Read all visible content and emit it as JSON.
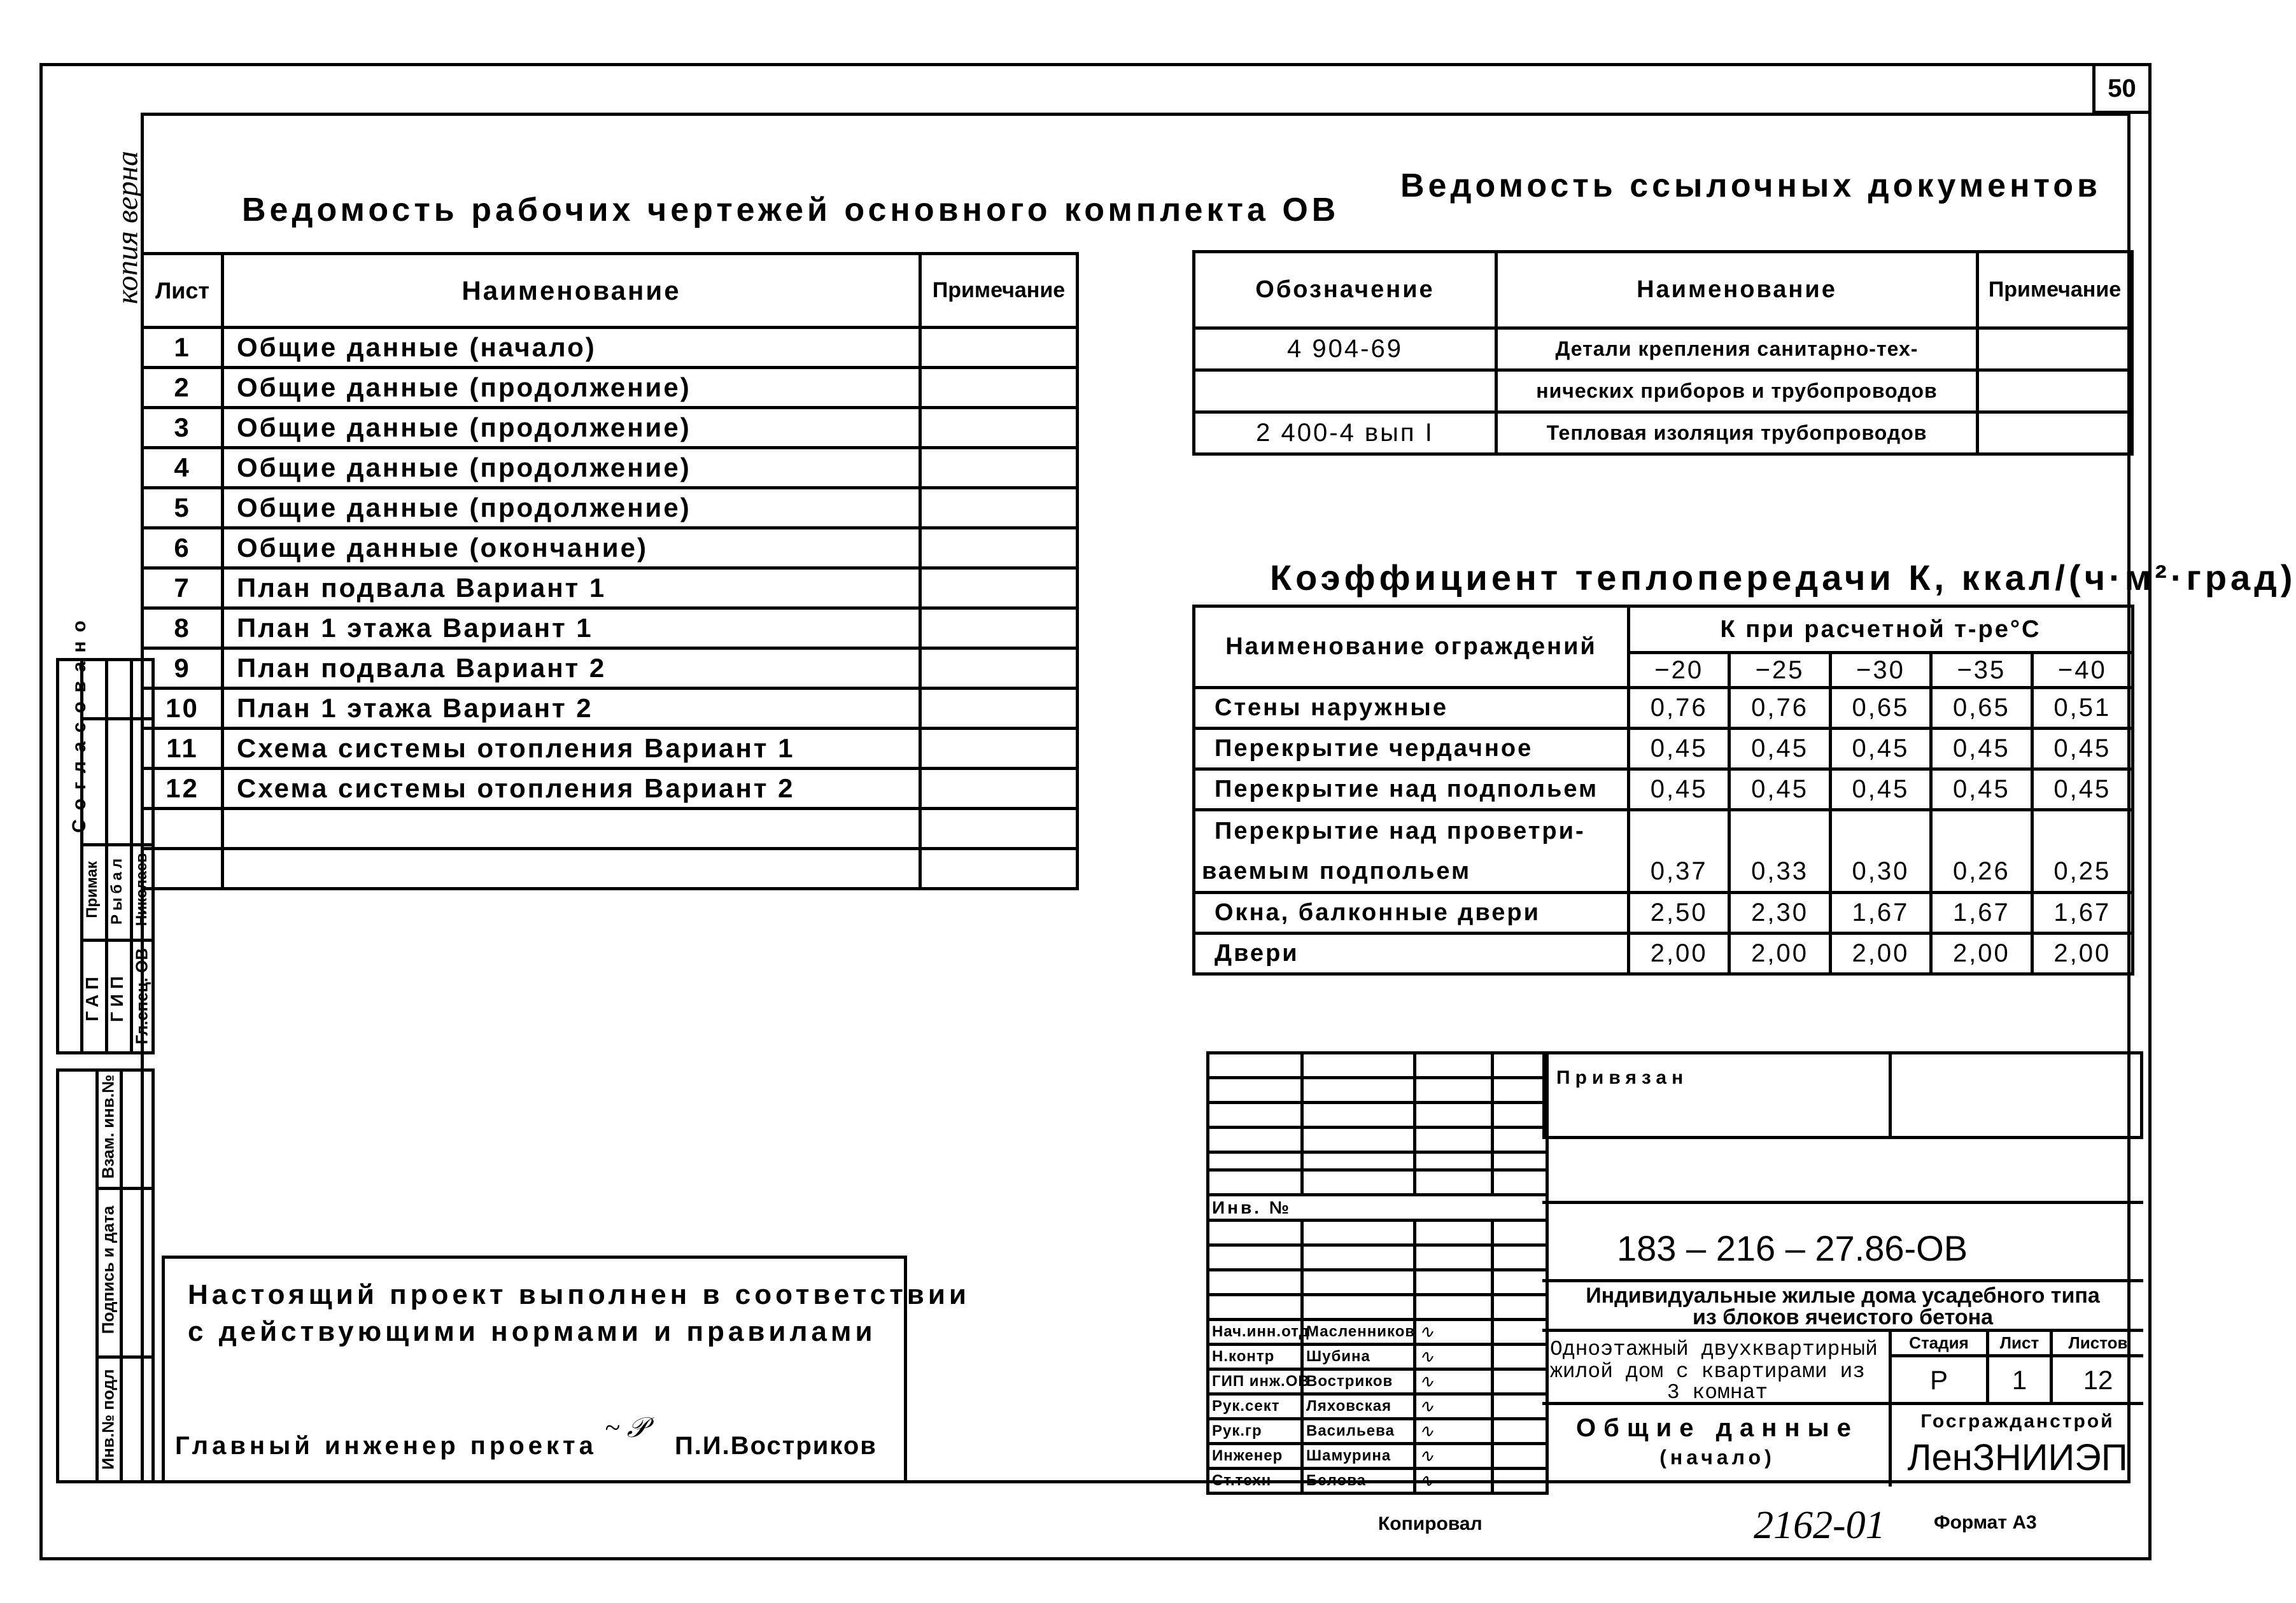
{
  "sheet_number": "50",
  "margin_note": "копия верна",
  "drawings_list": {
    "title": "Ведомость рабочих чертежей основного комплекта ОВ",
    "headers": [
      "Лист",
      "Наименование",
      "Примечание"
    ],
    "rows": [
      {
        "sheet": "1",
        "name": "Общие данные (начало)"
      },
      {
        "sheet": "2",
        "name": "Общие данные (продолжение)"
      },
      {
        "sheet": "3",
        "name": "Общие данные (продолжение)"
      },
      {
        "sheet": "4",
        "name": "Общие данные (продолжение)"
      },
      {
        "sheet": "5",
        "name": "Общие данные (продолжение)"
      },
      {
        "sheet": "6",
        "name": "Общие данные (окончание)"
      },
      {
        "sheet": "7",
        "name": "План подвала Вариант 1"
      },
      {
        "sheet": "8",
        "name": "План 1 этажа Вариант 1"
      },
      {
        "sheet": "9",
        "name": "План подвала Вариант 2"
      },
      {
        "sheet": "10",
        "name": "План 1 этажа Вариант 2"
      },
      {
        "sheet": "11",
        "name": "Схема системы отопления Вариант 1"
      },
      {
        "sheet": "12",
        "name": "Схема системы отопления Вариант 2"
      },
      {
        "sheet": "",
        "name": ""
      },
      {
        "sheet": "",
        "name": ""
      }
    ]
  },
  "reference_docs": {
    "title": "Ведомость ссылочных документов",
    "headers": [
      "Обозначение",
      "Наименование",
      "Примечание"
    ],
    "rows": [
      {
        "code": "4 904-69",
        "name": "Детали крепления санитарно-тех-"
      },
      {
        "code": "",
        "name": "нических приборов и трубопроводов"
      },
      {
        "code": "2 400-4 вып I",
        "name": "Тепловая изоляция трубопроводов"
      }
    ]
  },
  "heat_transfer": {
    "title": "Коэффициент теплопередачи К, ккал/(ч·м²·град)",
    "name_header": "Наименование ограждений",
    "group_header": "К при расчетной т-ре°С",
    "temps": [
      "−20",
      "−25",
      "−30",
      "−35",
      "−40"
    ],
    "rows": [
      {
        "name": "Стены наружные",
        "values": [
          "0,76",
          "0,76",
          "0,65",
          "0,65",
          "0,51"
        ]
      },
      {
        "name": "Перекрытие чердачное",
        "values": [
          "0,45",
          "0,45",
          "0,45",
          "0,45",
          "0,45"
        ]
      },
      {
        "name": "Перекрытие над подпольем",
        "values": [
          "0,45",
          "0,45",
          "0,45",
          "0,45",
          "0,45"
        ]
      },
      {
        "name": "Перекрытие над проветри-",
        "name2": "ваемым подпольем",
        "values": [
          "0,37",
          "0,33",
          "0,30",
          "0,26",
          "0,25"
        ]
      },
      {
        "name": "Окна, балконные двери",
        "values": [
          "2,50",
          "2,30",
          "1,67",
          "1,67",
          "1,67"
        ]
      },
      {
        "name": "Двери",
        "values": [
          "2,00",
          "2,00",
          "2,00",
          "2,00",
          "2,00"
        ]
      }
    ]
  },
  "compliance_note": {
    "line1": "Настоящий проект выполнен в соответствии",
    "line2": "с действующими нормами и правилами",
    "chief_label": "Главный инженер проекта",
    "chief_name": "П.И.Востриков"
  },
  "approval_stamp": {
    "title": "Согласовано",
    "roles": [
      "ГАП",
      "ГИП",
      "Гл.спец. ОВ"
    ],
    "names": [
      "Примак",
      "Рыбал",
      "Николаев"
    ]
  },
  "side_stamp": {
    "fields": [
      "Взам. инв.№",
      "Подпись и дата",
      "Инв.№ подл"
    ]
  },
  "title_block": {
    "bound_label": "Привязан",
    "inv_label": "Инв. №",
    "doc_code": "183 – 216 – 27.86-ОВ",
    "project_title_1": "Индивидуальные жилые дома усадебного типа",
    "project_title_2": "из блоков ячеистого бетона",
    "building_1": "Одноэтажный двухквартирный",
    "building_2": "жилой дом с квартирами из",
    "building_3": "3 комнат",
    "stage_label": "Стадия",
    "sheet_label": "Лист",
    "sheets_label": "Листов",
    "stage": "Р",
    "sheet": "1",
    "sheets": "12",
    "sheet_title_1": "Общие данные",
    "sheet_title_2": "(начало)",
    "org_1": "Госгражданстрой",
    "org_2": "ЛенЗНИИЭП",
    "staff": [
      {
        "role": "Нач.инн.отд",
        "name": "Масленников"
      },
      {
        "role": "Н.контр",
        "name": "Шубина"
      },
      {
        "role": "ГИП инж.ОВ",
        "name": "Востриков"
      },
      {
        "role": "Рук.сект",
        "name": "Ляховская"
      },
      {
        "role": "Рук.гр",
        "name": "Васильева"
      },
      {
        "role": "Инженер",
        "name": "Шамурина"
      },
      {
        "role": "Ст.техн",
        "name": "Белова"
      }
    ]
  },
  "footer": {
    "copied_label": "Копировал",
    "order_number": "2162-01",
    "format_label": "Формат А3"
  }
}
